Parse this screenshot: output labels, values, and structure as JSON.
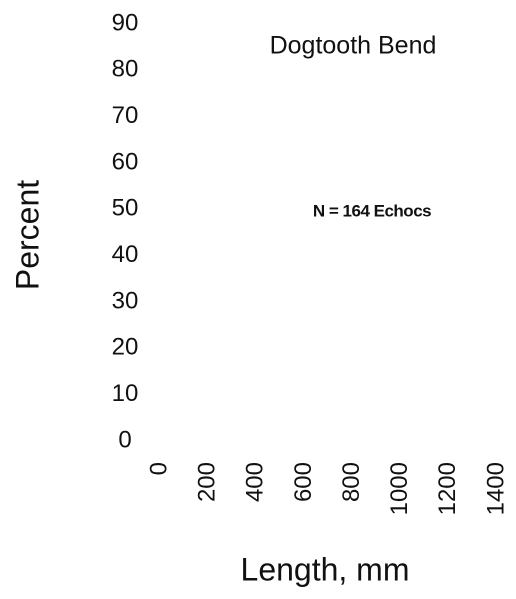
{
  "chart_data": {
    "type": "bar",
    "title": "Dogtooth Bend",
    "annotation": "N = 164 Echocs",
    "xlabel": "Length, mm",
    "ylabel": "Percent",
    "xlim": [
      0,
      1400
    ],
    "xticks": [
      0,
      200,
      400,
      600,
      800,
      1000,
      1200,
      1400
    ],
    "ylim": [
      0,
      90
    ],
    "yticks": [
      0,
      10,
      20,
      30,
      40,
      50,
      60,
      70,
      80,
      90
    ],
    "grid": false
  }
}
